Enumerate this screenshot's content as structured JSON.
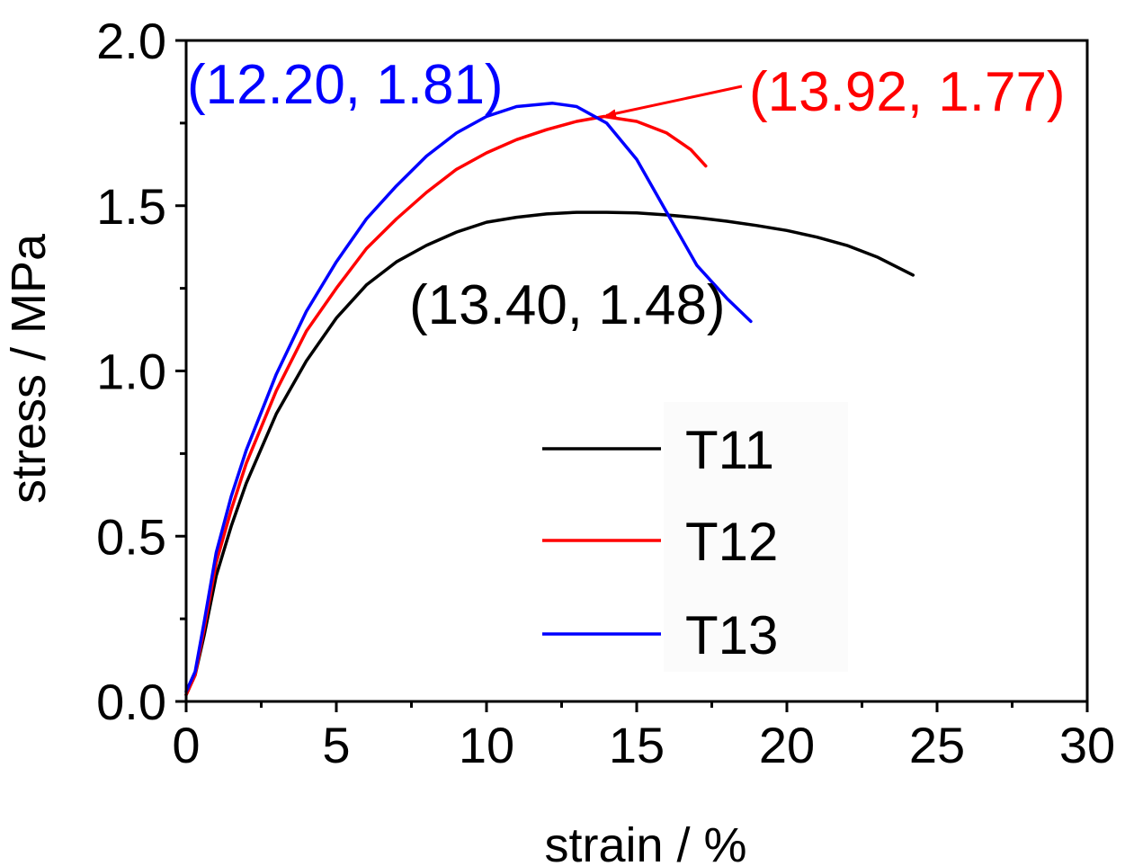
{
  "chart_data": {
    "type": "line",
    "xlabel": "strain / %",
    "ylabel": "stress / MPa",
    "xlim": [
      0,
      30
    ],
    "ylim": [
      0,
      2.0
    ],
    "xticks": [
      0,
      5,
      10,
      15,
      20,
      25,
      30
    ],
    "xtick_labels": [
      "0",
      "5",
      "10",
      "15",
      "20",
      "25",
      "30"
    ],
    "yticks": [
      0,
      0.5,
      1.0,
      1.5,
      2.0
    ],
    "ytick_labels": [
      "0.0",
      "0.5",
      "1.0",
      "1.5",
      "2.0"
    ],
    "grid": false,
    "legend_position": "lower-right",
    "series": [
      {
        "name": "T11",
        "color": "#000000",
        "x": [
          0,
          0.3,
          0.6,
          1.0,
          1.5,
          2.0,
          3.0,
          4.0,
          5.0,
          6.0,
          7.0,
          8.0,
          9.0,
          10.0,
          11.0,
          12.0,
          13.0,
          14.0,
          15.0,
          16.0,
          17.0,
          18.0,
          19.0,
          20.0,
          21.0,
          22.0,
          23.0,
          24.2
        ],
        "y": [
          0.02,
          0.08,
          0.2,
          0.38,
          0.53,
          0.66,
          0.87,
          1.03,
          1.16,
          1.26,
          1.33,
          1.38,
          1.42,
          1.45,
          1.465,
          1.475,
          1.48,
          1.48,
          1.478,
          1.472,
          1.464,
          1.453,
          1.44,
          1.425,
          1.405,
          1.38,
          1.345,
          1.29
        ]
      },
      {
        "name": "T12",
        "color": "#ff0000",
        "x": [
          0,
          0.3,
          0.6,
          1.0,
          1.5,
          2.0,
          3.0,
          4.0,
          5.0,
          6.0,
          7.0,
          8.0,
          9.0,
          10.0,
          11.0,
          12.0,
          13.0,
          13.92,
          15.0,
          16.0,
          16.8,
          17.3
        ],
        "y": [
          0.02,
          0.08,
          0.22,
          0.42,
          0.58,
          0.72,
          0.94,
          1.12,
          1.25,
          1.37,
          1.46,
          1.54,
          1.61,
          1.66,
          1.7,
          1.73,
          1.755,
          1.77,
          1.755,
          1.72,
          1.67,
          1.62
        ]
      },
      {
        "name": "T13",
        "color": "#0000ff",
        "x": [
          0,
          0.3,
          0.6,
          1.0,
          1.5,
          2.0,
          3.0,
          4.0,
          5.0,
          6.0,
          7.0,
          8.0,
          9.0,
          10.0,
          11.0,
          12.2,
          13.0,
          14.0,
          15.0,
          16.0,
          17.0,
          18.0,
          18.8
        ],
        "y": [
          0.03,
          0.09,
          0.24,
          0.45,
          0.62,
          0.76,
          0.99,
          1.18,
          1.33,
          1.46,
          1.56,
          1.65,
          1.72,
          1.77,
          1.8,
          1.81,
          1.8,
          1.75,
          1.64,
          1.48,
          1.32,
          1.22,
          1.15
        ]
      }
    ],
    "annotations": [
      {
        "text": "(12.20, 1.81)",
        "color": "#0000ff",
        "x": 12.2,
        "y": 1.81,
        "series": "T13"
      },
      {
        "text": "(13.92, 1.77)",
        "color": "#ff0000",
        "x": 13.92,
        "y": 1.77,
        "series": "T12",
        "arrow": true
      },
      {
        "text": "(13.40, 1.48)",
        "color": "#000000",
        "x": 13.4,
        "y": 1.48,
        "series": "T11"
      }
    ]
  }
}
